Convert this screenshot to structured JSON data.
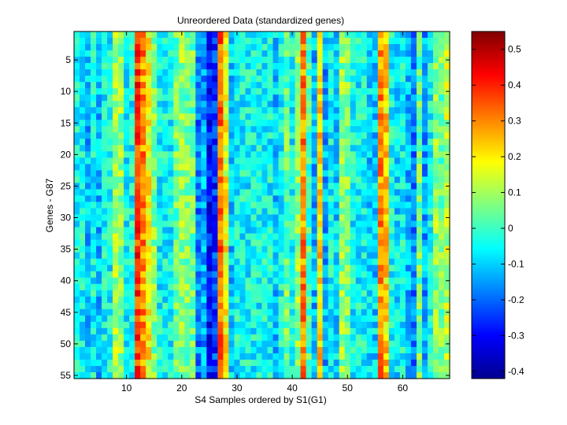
{
  "chart_data": {
    "type": "heatmap",
    "title": "Unreordered Data (standardized genes)",
    "xlabel": "S4 Samples ordered by S1(G1)",
    "ylabel": "Genes - G87",
    "n_cols": 68,
    "n_rows": 55,
    "xlim": [
      0.5,
      68.5
    ],
    "ylim": [
      0.5,
      55.5
    ],
    "x_ticks": [
      10,
      20,
      30,
      40,
      50,
      60
    ],
    "y_ticks": [
      5,
      10,
      15,
      20,
      25,
      30,
      35,
      40,
      45,
      50,
      55
    ],
    "colorbar": {
      "colormap": "jet",
      "range": [
        -0.42,
        0.55
      ],
      "ticks": [
        -0.4,
        -0.3,
        -0.2,
        -0.1,
        0,
        0.1,
        0.2,
        0.3,
        0.4,
        0.5
      ],
      "tick_labels": [
        "-0.4",
        "-0.3",
        "-0.2",
        "-0.1",
        "0",
        "0.1",
        "0.2",
        "0.3",
        "0.4",
        "0.5"
      ]
    },
    "baseline_value": -0.05,
    "column_profile": {
      "high_columns": [
        {
          "col": 12,
          "value": 0.38
        },
        {
          "col": 13,
          "value": 0.3
        },
        {
          "col": 14,
          "value": 0.18
        },
        {
          "col": 27,
          "value": 0.33
        },
        {
          "col": 28,
          "value": 0.18
        },
        {
          "col": 42,
          "value": 0.3
        },
        {
          "col": 45,
          "value": 0.22
        },
        {
          "col": 56,
          "value": 0.3
        },
        {
          "col": 57,
          "value": 0.22
        },
        {
          "col": 68,
          "value": 0.12
        }
      ],
      "medium_columns": [
        {
          "col": 8,
          "value": 0.1
        },
        {
          "col": 9,
          "value": 0.08
        },
        {
          "col": 15,
          "value": 0.06
        },
        {
          "col": 19,
          "value": 0.05
        },
        {
          "col": 20,
          "value": 0.08
        },
        {
          "col": 21,
          "value": 0.06
        },
        {
          "col": 22,
          "value": 0.05
        },
        {
          "col": 41,
          "value": 0.08
        },
        {
          "col": 39,
          "value": 0.05
        },
        {
          "col": 43,
          "value": 0.02
        },
        {
          "col": 49,
          "value": 0.08
        },
        {
          "col": 50,
          "value": 0.06
        },
        {
          "col": 63,
          "value": 0.05
        },
        {
          "col": 66,
          "value": 0.08
        },
        {
          "col": 67,
          "value": 0.05
        }
      ],
      "low_columns": [
        {
          "col": 3,
          "value": -0.12
        },
        {
          "col": 5,
          "value": -0.12
        },
        {
          "col": 23,
          "value": -0.18
        },
        {
          "col": 24,
          "value": -0.14
        },
        {
          "col": 25,
          "value": -0.28
        },
        {
          "col": 26,
          "value": -0.25
        },
        {
          "col": 29,
          "value": -0.1
        },
        {
          "col": 37,
          "value": -0.1
        },
        {
          "col": 44,
          "value": -0.12
        },
        {
          "col": 46,
          "value": -0.14
        },
        {
          "col": 48,
          "value": -0.1
        },
        {
          "col": 54,
          "value": -0.1
        },
        {
          "col": 55,
          "value": -0.1
        },
        {
          "col": 59,
          "value": -0.08
        },
        {
          "col": 61,
          "value": -0.12
        },
        {
          "col": 62,
          "value": -0.18
        },
        {
          "col": 64,
          "value": -0.14
        }
      ],
      "noise_amplitude": 0.09
    }
  }
}
